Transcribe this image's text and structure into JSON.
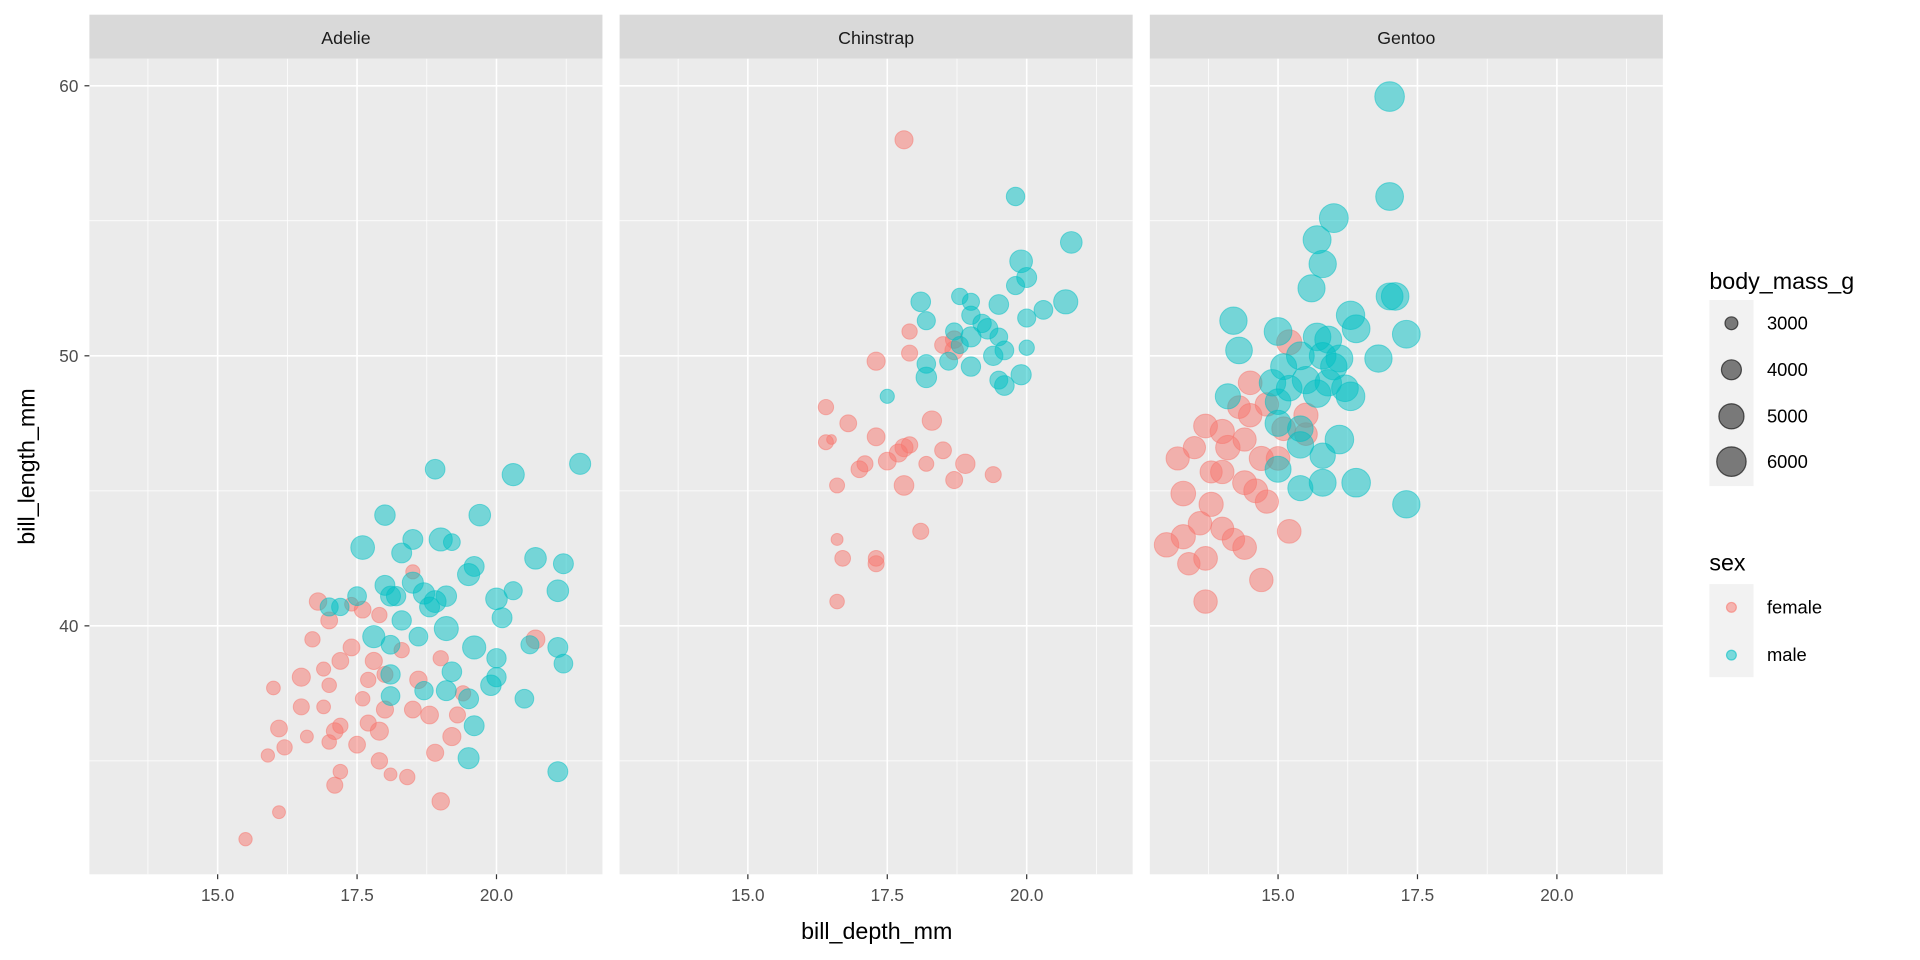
{
  "chart_data": {
    "type": "scatter",
    "xlabel": "bill_depth_mm",
    "ylabel": "bill_length_mm",
    "xlim": [
      12.7,
      21.9
    ],
    "ylim": [
      30.8,
      61.0
    ],
    "x_ticks": [
      "15.0",
      "17.5",
      "20.0"
    ],
    "x_tick_values": [
      15,
      17.5,
      20
    ],
    "y_ticks": [
      "40",
      "50",
      "60"
    ],
    "y_tick_values": [
      40,
      50,
      60
    ],
    "grid": true,
    "legend_position": "right",
    "size_legend": {
      "title": "body_mass_g",
      "values": [
        3000,
        4000,
        5000,
        6000
      ],
      "labels": [
        "3000",
        "4000",
        "5000",
        "6000"
      ]
    },
    "color_legend": {
      "title": "sex",
      "labels": [
        "female",
        "male"
      ],
      "colors": {
        "female": "#F8766D",
        "male": "#00BFC4"
      }
    },
    "size_range": [
      2700,
      6300
    ],
    "facets": [
      {
        "name": "Adelie",
        "female": [
          [
            15.5,
            32.1,
            3050
          ],
          [
            16.1,
            33.1,
            3000
          ],
          [
            15.9,
            35.2,
            3050
          ],
          [
            16.2,
            35.5,
            3300
          ],
          [
            16.1,
            36.2,
            3500
          ],
          [
            16.0,
            37.7,
            3100
          ],
          [
            16.5,
            38.1,
            3700
          ],
          [
            16.5,
            37.0,
            3400
          ],
          [
            16.6,
            35.9,
            3000
          ],
          [
            16.7,
            39.5,
            3300
          ],
          [
            16.8,
            40.9,
            3600
          ],
          [
            16.9,
            37.0,
            3100
          ],
          [
            17.0,
            37.8,
            3200
          ],
          [
            17.0,
            40.2,
            3500
          ],
          [
            17.1,
            34.1,
            3400
          ],
          [
            17.2,
            34.6,
            3200
          ],
          [
            17.1,
            36.1,
            3500
          ],
          [
            17.2,
            36.3,
            3300
          ],
          [
            17.0,
            35.7,
            3200
          ],
          [
            17.2,
            38.7,
            3500
          ],
          [
            17.4,
            39.2,
            3500
          ],
          [
            17.5,
            35.6,
            3500
          ],
          [
            17.6,
            37.3,
            3200
          ],
          [
            17.7,
            38.0,
            3300
          ],
          [
            17.8,
            38.7,
            3550
          ],
          [
            17.9,
            36.1,
            3700
          ],
          [
            17.9,
            35.0,
            3450
          ],
          [
            18.1,
            34.5,
            3000
          ],
          [
            18.0,
            38.2,
            3400
          ],
          [
            18.0,
            36.9,
            3550
          ],
          [
            18.3,
            39.1,
            3300
          ],
          [
            18.5,
            42.0,
            3150
          ],
          [
            18.5,
            36.9,
            3500
          ],
          [
            18.6,
            38.0,
            3600
          ],
          [
            18.8,
            36.7,
            3650
          ],
          [
            18.4,
            34.4,
            3300
          ],
          [
            18.9,
            35.3,
            3550
          ],
          [
            19.0,
            33.5,
            3600
          ],
          [
            19.2,
            35.9,
            3700
          ],
          [
            19.3,
            36.7,
            3400
          ],
          [
            19.4,
            37.5,
            3300
          ],
          [
            19.0,
            38.8,
            3300
          ],
          [
            20.7,
            39.5,
            3800
          ],
          [
            17.6,
            40.6,
            3500
          ],
          [
            17.9,
            40.4,
            3300
          ],
          [
            17.4,
            40.8,
            3100
          ],
          [
            16.9,
            38.4,
            3150
          ],
          [
            17.7,
            36.4,
            3400
          ]
        ],
        "male": [
          [
            18.9,
            45.8,
            3950
          ],
          [
            20.3,
            45.6,
            4400
          ],
          [
            21.5,
            46.0,
            4200
          ],
          [
            18.0,
            44.1,
            4100
          ],
          [
            19.7,
            44.1,
            4300
          ],
          [
            17.6,
            42.9,
            4700
          ],
          [
            18.5,
            43.2,
            4000
          ],
          [
            19.0,
            43.2,
            4600
          ],
          [
            19.2,
            43.1,
            3500
          ],
          [
            18.3,
            42.7,
            4000
          ],
          [
            20.7,
            42.5,
            4300
          ],
          [
            21.2,
            42.3,
            4000
          ],
          [
            19.6,
            42.2,
            4000
          ],
          [
            19.5,
            41.9,
            4400
          ],
          [
            17.5,
            41.1,
            3800
          ],
          [
            18.0,
            41.5,
            4000
          ],
          [
            18.2,
            41.1,
            3900
          ],
          [
            18.5,
            41.6,
            4200
          ],
          [
            18.7,
            41.2,
            4250
          ],
          [
            18.9,
            40.9,
            4350
          ],
          [
            19.1,
            41.1,
            4100
          ],
          [
            20.0,
            41.0,
            4300
          ],
          [
            20.3,
            41.3,
            3700
          ],
          [
            21.1,
            41.3,
            4300
          ],
          [
            17.0,
            40.7,
            3700
          ],
          [
            17.2,
            40.7,
            3600
          ],
          [
            18.8,
            40.7,
            4000
          ],
          [
            18.3,
            40.2,
            3900
          ],
          [
            19.1,
            39.9,
            4775
          ],
          [
            20.1,
            40.3,
            4000
          ],
          [
            18.6,
            39.6,
            3800
          ],
          [
            17.8,
            39.6,
            4400
          ],
          [
            18.1,
            39.3,
            3800
          ],
          [
            19.6,
            39.2,
            4600
          ],
          [
            20.6,
            39.3,
            3700
          ],
          [
            21.1,
            39.2,
            4000
          ],
          [
            20.0,
            38.8,
            3900
          ],
          [
            21.2,
            38.6,
            3800
          ],
          [
            19.2,
            38.3,
            3950
          ],
          [
            18.1,
            38.2,
            3900
          ],
          [
            20.0,
            38.1,
            3900
          ],
          [
            19.9,
            37.8,
            4100
          ],
          [
            18.7,
            37.6,
            3750
          ],
          [
            19.1,
            37.6,
            4000
          ],
          [
            18.1,
            37.4,
            3800
          ],
          [
            20.5,
            37.3,
            3800
          ],
          [
            19.5,
            37.3,
            4000
          ],
          [
            19.6,
            36.3,
            4000
          ],
          [
            19.5,
            35.1,
            4200
          ],
          [
            21.1,
            34.6,
            4000
          ],
          [
            18.1,
            41.1,
            4000
          ]
        ]
      },
      {
        "name": "Chinstrap",
        "female": [
          [
            17.8,
            58.0,
            3700
          ],
          [
            17.3,
            49.8,
            3700
          ],
          [
            17.9,
            50.9,
            3300
          ],
          [
            17.9,
            50.1,
            3400
          ],
          [
            18.5,
            50.4,
            3500
          ],
          [
            18.7,
            50.2,
            3775
          ],
          [
            16.4,
            48.1,
            3300
          ],
          [
            16.8,
            47.5,
            3500
          ],
          [
            18.3,
            47.6,
            3900
          ],
          [
            17.3,
            47.0,
            3650
          ],
          [
            16.5,
            46.9,
            2700
          ],
          [
            16.4,
            46.8,
            3250
          ],
          [
            17.8,
            46.6,
            3700
          ],
          [
            17.9,
            46.7,
            3450
          ],
          [
            17.7,
            46.4,
            3700
          ],
          [
            17.5,
            46.1,
            3650
          ],
          [
            18.5,
            46.5,
            3500
          ],
          [
            18.9,
            46.0,
            3900
          ],
          [
            17.1,
            46.0,
            3400
          ],
          [
            17.0,
            45.8,
            3500
          ],
          [
            18.2,
            46.0,
            3250
          ],
          [
            19.4,
            45.6,
            3400
          ],
          [
            16.6,
            45.2,
            3250
          ],
          [
            17.8,
            45.2,
            3950
          ],
          [
            18.7,
            45.4,
            3525
          ],
          [
            18.1,
            43.5,
            3400
          ],
          [
            16.6,
            43.2,
            2900
          ],
          [
            16.7,
            42.5,
            3350
          ],
          [
            17.3,
            42.5,
            3350
          ],
          [
            17.3,
            42.3,
            3400
          ],
          [
            16.6,
            40.9,
            3200
          ],
          [
            18.7,
            50.6,
            3600
          ]
        ],
        "male": [
          [
            19.8,
            55.9,
            3750
          ],
          [
            20.8,
            54.2,
            4300
          ],
          [
            19.9,
            53.5,
            4500
          ],
          [
            20.0,
            52.9,
            4000
          ],
          [
            19.8,
            52.6,
            3700
          ],
          [
            18.1,
            52.0,
            3950
          ],
          [
            20.7,
            52.0,
            4800
          ],
          [
            18.8,
            52.2,
            3450
          ],
          [
            19.0,
            52.0,
            3550
          ],
          [
            20.3,
            51.7,
            3800
          ],
          [
            18.2,
            51.3,
            3700
          ],
          [
            19.0,
            51.5,
            3750
          ],
          [
            19.2,
            51.2,
            3750
          ],
          [
            19.5,
            51.9,
            3950
          ],
          [
            20.0,
            51.4,
            3700
          ],
          [
            18.7,
            50.9,
            3575
          ],
          [
            18.8,
            50.4,
            3550
          ],
          [
            19.0,
            50.7,
            4050
          ],
          [
            19.3,
            51.0,
            4100
          ],
          [
            19.5,
            50.7,
            3650
          ],
          [
            19.6,
            50.2,
            3800
          ],
          [
            20.0,
            50.3,
            3300
          ],
          [
            19.4,
            50.0,
            3900
          ],
          [
            18.6,
            49.8,
            3675
          ],
          [
            18.2,
            49.7,
            3775
          ],
          [
            18.2,
            49.2,
            4100
          ],
          [
            19.0,
            49.6,
            3900
          ],
          [
            19.5,
            49.1,
            3675
          ],
          [
            19.9,
            49.3,
            4050
          ],
          [
            19.6,
            48.9,
            3950
          ],
          [
            17.5,
            48.5,
            3150
          ]
        ]
      },
      {
        "name": "Gentoo",
        "female": [
          [
            15.2,
            50.5,
            5000
          ],
          [
            14.5,
            49.0,
            4700
          ],
          [
            14.3,
            48.1,
            4500
          ],
          [
            14.8,
            48.2,
            4650
          ],
          [
            13.7,
            47.4,
            4725
          ],
          [
            14.0,
            47.2,
            4800
          ],
          [
            14.5,
            47.8,
            4650
          ],
          [
            15.5,
            47.8,
            4800
          ],
          [
            15.5,
            47.1,
            4500
          ],
          [
            15.1,
            47.3,
            4700
          ],
          [
            13.5,
            46.6,
            4400
          ],
          [
            13.2,
            46.2,
            4600
          ],
          [
            14.1,
            46.6,
            4850
          ],
          [
            14.4,
            46.9,
            4600
          ],
          [
            14.7,
            46.2,
            4800
          ],
          [
            15.0,
            46.2,
            4700
          ],
          [
            13.8,
            45.7,
            4400
          ],
          [
            14.0,
            45.7,
            4650
          ],
          [
            14.4,
            45.3,
            4750
          ],
          [
            14.6,
            45.0,
            4750
          ],
          [
            13.3,
            44.9,
            4900
          ],
          [
            13.8,
            44.5,
            4800
          ],
          [
            14.8,
            44.6,
            4600
          ],
          [
            13.6,
            43.8,
            4650
          ],
          [
            14.0,
            43.6,
            4550
          ],
          [
            14.2,
            43.2,
            4450
          ],
          [
            14.4,
            42.9,
            4700
          ],
          [
            15.2,
            43.5,
            4700
          ],
          [
            13.0,
            43.0,
            4850
          ],
          [
            13.3,
            43.3,
            4800
          ],
          [
            13.4,
            42.3,
            4450
          ],
          [
            13.7,
            42.5,
            4700
          ],
          [
            14.7,
            41.7,
            4650
          ],
          [
            13.7,
            40.9,
            4650
          ]
        ],
        "male": [
          [
            17.0,
            59.6,
            6050
          ],
          [
            17.0,
            55.9,
            5600
          ],
          [
            16.0,
            55.1,
            5850
          ],
          [
            15.7,
            54.3,
            5650
          ],
          [
            15.8,
            53.4,
            5500
          ],
          [
            15.6,
            52.5,
            5450
          ],
          [
            17.0,
            52.2,
            5400
          ],
          [
            17.1,
            52.2,
            5550
          ],
          [
            14.2,
            51.3,
            5500
          ],
          [
            16.3,
            51.5,
            5750
          ],
          [
            16.4,
            51.0,
            5600
          ],
          [
            17.3,
            50.8,
            5600
          ],
          [
            15.0,
            50.9,
            5600
          ],
          [
            14.3,
            50.2,
            5350
          ],
          [
            15.7,
            50.7,
            5550
          ],
          [
            15.9,
            50.6,
            5400
          ],
          [
            16.8,
            49.9,
            5500
          ],
          [
            15.4,
            50.0,
            5600
          ],
          [
            15.8,
            50.0,
            5350
          ],
          [
            16.1,
            49.9,
            5400
          ],
          [
            16.0,
            49.6,
            5300
          ],
          [
            15.1,
            49.6,
            5200
          ],
          [
            14.9,
            49.0,
            5300
          ],
          [
            15.5,
            49.1,
            5500
          ],
          [
            15.9,
            49.0,
            5300
          ],
          [
            16.2,
            48.8,
            5350
          ],
          [
            16.3,
            48.5,
            5800
          ],
          [
            14.1,
            48.5,
            5000
          ],
          [
            15.7,
            48.6,
            5550
          ],
          [
            15.0,
            48.3,
            5100
          ],
          [
            15.0,
            47.5,
            5200
          ],
          [
            15.4,
            47.3,
            5100
          ],
          [
            16.1,
            46.9,
            5800
          ],
          [
            15.4,
            46.7,
            5300
          ],
          [
            15.8,
            46.3,
            5050
          ],
          [
            15.0,
            45.8,
            5200
          ],
          [
            15.4,
            45.1,
            5000
          ],
          [
            15.8,
            45.3,
            5400
          ],
          [
            16.4,
            45.3,
            5800
          ],
          [
            17.3,
            44.5,
            5500
          ],
          [
            15.2,
            48.8,
            5100
          ]
        ]
      }
    ]
  }
}
